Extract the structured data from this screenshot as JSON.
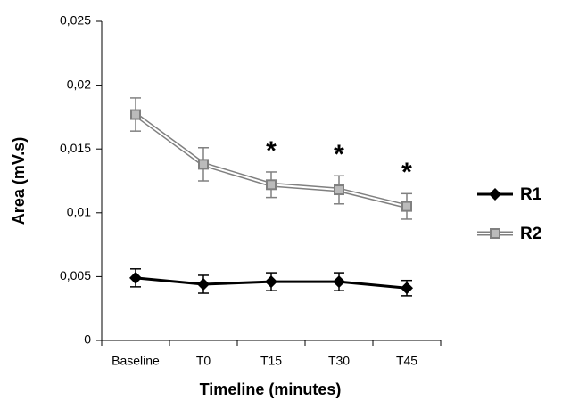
{
  "chart_data": {
    "type": "line",
    "x_label": "Timeline (minutes)",
    "y_label": "Area (mV.s)",
    "categories": [
      "Baseline",
      "T0",
      "T15",
      "T30",
      "T45"
    ],
    "series": [
      {
        "name": "R1",
        "color": "#000000",
        "marker": "diamond",
        "values": [
          0.0049,
          0.0044,
          0.0046,
          0.0046,
          0.0041
        ],
        "errors": [
          0.0007,
          0.0007,
          0.0007,
          0.0007,
          0.0006
        ]
      },
      {
        "name": "R2",
        "color": "#808080",
        "marker": "square",
        "values": [
          0.0177,
          0.0138,
          0.0122,
          0.0118,
          0.0105
        ],
        "errors": [
          0.0013,
          0.0013,
          0.001,
          0.0011,
          0.001
        ]
      }
    ],
    "annotations": [
      {
        "category": 2,
        "text": "*"
      },
      {
        "category": 3,
        "text": "*"
      },
      {
        "category": 4,
        "text": "*"
      }
    ],
    "ylim": [
      0,
      0.025
    ],
    "yticks": [
      0,
      {
        "value": 0.005,
        "label": "0,005"
      },
      {
        "value": 0.01,
        "label": "0,01"
      },
      {
        "value": 0.015,
        "label": "0,015"
      },
      {
        "value": 0.02,
        "label": "0,02"
      },
      {
        "value": 0.025,
        "label": "0,025"
      }
    ],
    "grid": false,
    "legend": "right"
  }
}
